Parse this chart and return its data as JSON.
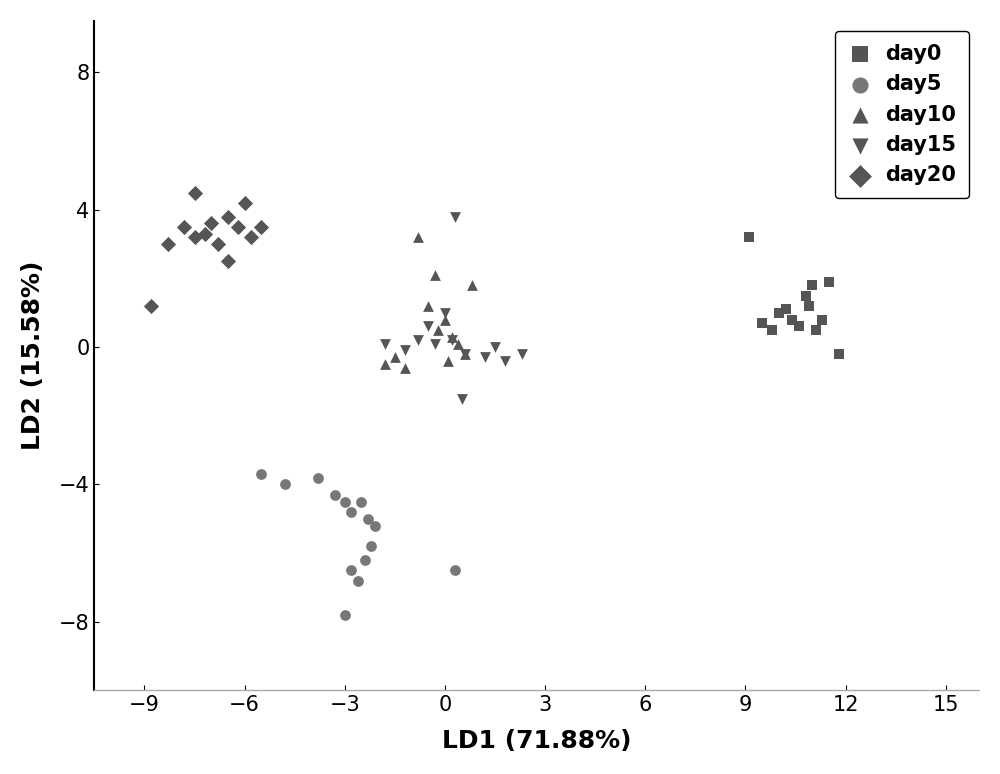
{
  "day0": {
    "x": [
      9.1,
      9.5,
      9.8,
      10.0,
      10.2,
      10.4,
      10.6,
      10.8,
      11.0,
      11.1,
      11.3,
      11.5,
      10.9,
      11.8
    ],
    "y": [
      3.2,
      0.7,
      0.5,
      1.0,
      1.1,
      0.8,
      0.6,
      1.5,
      1.8,
      0.5,
      0.8,
      1.9,
      1.2,
      -0.2
    ],
    "marker": "s",
    "color": "#555555",
    "label": "day0",
    "size": 60
  },
  "day5": {
    "x": [
      -5.5,
      -4.8,
      -3.8,
      -3.3,
      -3.0,
      -2.8,
      -2.5,
      -2.3,
      -2.1,
      -2.8,
      -2.6,
      -2.4,
      -2.2,
      0.3,
      -3.0
    ],
    "y": [
      -3.7,
      -4.0,
      -3.8,
      -4.3,
      -4.5,
      -4.8,
      -4.5,
      -5.0,
      -5.2,
      -6.5,
      -6.8,
      -6.2,
      -5.8,
      -6.5,
      -7.8
    ],
    "marker": "o",
    "color": "#777777",
    "label": "day5",
    "size": 60
  },
  "day10": {
    "x": [
      -1.8,
      -1.5,
      -1.2,
      -0.8,
      -0.3,
      0.0,
      0.2,
      0.4,
      0.6,
      0.1,
      -0.2,
      0.8,
      -0.5
    ],
    "y": [
      -0.5,
      -0.3,
      -0.6,
      3.2,
      2.1,
      0.8,
      0.3,
      0.1,
      -0.2,
      -0.4,
      0.5,
      1.8,
      1.2
    ],
    "marker": "^",
    "color": "#555555",
    "label": "day10",
    "size": 60
  },
  "day15": {
    "x": [
      -1.8,
      -0.8,
      -0.3,
      0.2,
      0.6,
      1.2,
      1.8,
      0.0,
      -0.5,
      0.5,
      2.3,
      -1.2,
      0.3,
      1.5
    ],
    "y": [
      0.1,
      0.2,
      0.1,
      0.2,
      -0.2,
      -0.3,
      -0.4,
      1.0,
      0.6,
      -1.5,
      -0.2,
      -0.1,
      3.8,
      0.0
    ],
    "marker": "v",
    "color": "#555555",
    "label": "day15",
    "size": 60
  },
  "day20": {
    "x": [
      -8.8,
      -8.3,
      -7.8,
      -7.5,
      -7.2,
      -7.0,
      -6.8,
      -6.5,
      -6.2,
      -6.0,
      -5.8,
      -5.5,
      -7.5,
      -6.5
    ],
    "y": [
      1.2,
      3.0,
      3.5,
      3.2,
      3.3,
      3.6,
      3.0,
      3.8,
      3.5,
      4.2,
      3.2,
      3.5,
      4.5,
      2.5
    ],
    "marker": "D",
    "color": "#555555",
    "label": "day20",
    "size": 60
  },
  "xlabel": "LD1 (71.88%)",
  "ylabel": "LD2 (15.58%)",
  "xlim": [
    -10.5,
    16
  ],
  "ylim": [
    -10,
    9.5
  ],
  "xticks": [
    -9,
    -6,
    -3,
    0,
    3,
    6,
    9,
    12,
    15
  ],
  "yticks": [
    -8,
    -4,
    0,
    4,
    8
  ],
  "axis_label_fontsize": 18,
  "tick_fontsize": 15,
  "legend_fontsize": 15,
  "background_color": "#ffffff"
}
